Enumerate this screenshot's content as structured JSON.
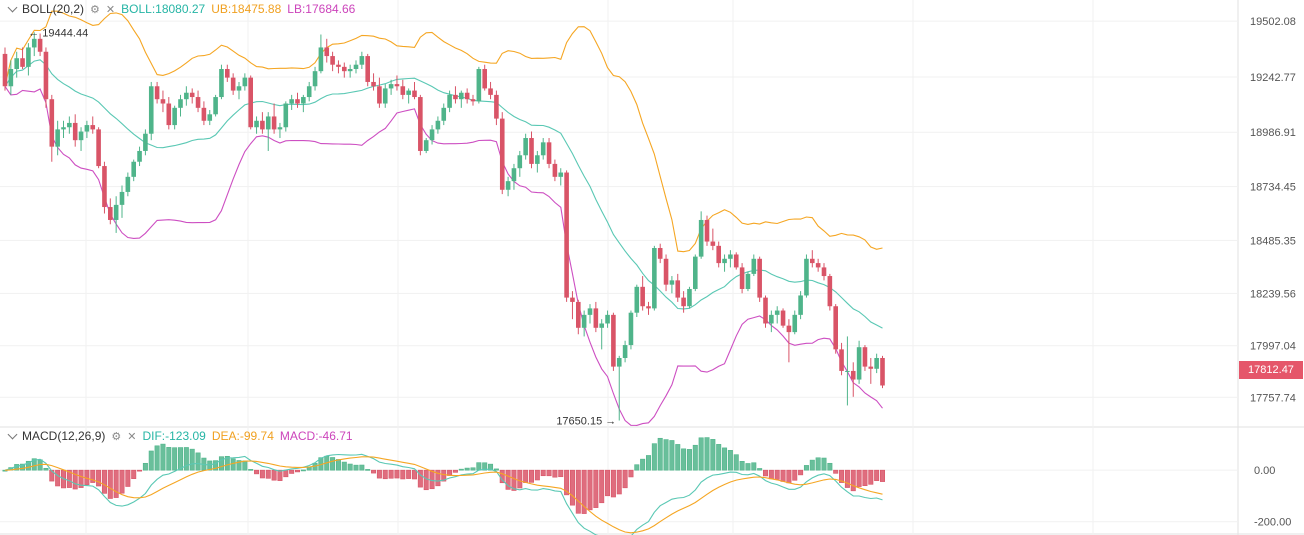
{
  "header_main": {
    "indicator": "BOLL(20,2)",
    "boll": "BOLL:18080.27",
    "ub": "UB:18475.88",
    "lb": "LB:17684.66"
  },
  "header_macd": {
    "indicator": "MACD(12,26,9)",
    "dif": "DIF:-123.09",
    "dea": "DEA:-99.74",
    "macd": "MACD:-46.71"
  },
  "price_axis_ticks": [
    "19502.08",
    "19242.77",
    "18986.91",
    "18734.45",
    "18485.35",
    "18239.56",
    "17997.04",
    "17757.74"
  ],
  "macd_axis_ticks": [
    "0.00",
    "-200.00"
  ],
  "current_price_tag": "17812.47",
  "annotations": {
    "high": "19444.44",
    "low": "17650.15"
  },
  "colors": {
    "up": "#4fb48a",
    "down": "#d95467",
    "mid": "#5ac8b4",
    "upper": "#f5a623",
    "lower": "#cd4fc2",
    "dif": "#5ac8b4",
    "dea": "#f5a623",
    "boll_text": "#26b5a5",
    "ub_text": "#f0a020",
    "lb_text": "#cc44bb"
  },
  "icons": [
    "chevron-down-icon",
    "settings-icon",
    "close-icon"
  ],
  "chart_data": {
    "type": "candlestick",
    "price_range": [
      17620,
      19600
    ],
    "macd_range": [
      -240,
      90
    ],
    "candles": [
      [
        19350,
        19380,
        19180,
        19200
      ],
      [
        19200,
        19320,
        19160,
        19280
      ],
      [
        19280,
        19360,
        19240,
        19330
      ],
      [
        19330,
        19380,
        19280,
        19290
      ],
      [
        19290,
        19400,
        19250,
        19380
      ],
      [
        19380,
        19450,
        19340,
        19420
      ],
      [
        19420,
        19444.44,
        19340,
        19360
      ],
      [
        19360,
        19380,
        19100,
        19140
      ],
      [
        19140,
        19160,
        18850,
        18920
      ],
      [
        18920,
        19040,
        18880,
        19000
      ],
      [
        19000,
        19040,
        18960,
        19010
      ],
      [
        19010,
        19060,
        18980,
        19030
      ],
      [
        19030,
        19070,
        18920,
        18950
      ],
      [
        18950,
        19010,
        18900,
        18990
      ],
      [
        18990,
        19040,
        18960,
        19020
      ],
      [
        19020,
        19060,
        18980,
        19000
      ],
      [
        19000,
        19010,
        18820,
        18830
      ],
      [
        18830,
        18850,
        18610,
        18640
      ],
      [
        18640,
        18680,
        18560,
        18580
      ],
      [
        18580,
        18690,
        18520,
        18650
      ],
      [
        18650,
        18740,
        18590,
        18710
      ],
      [
        18710,
        18800,
        18690,
        18780
      ],
      [
        18780,
        18860,
        18760,
        18850
      ],
      [
        18850,
        18920,
        18830,
        18900
      ],
      [
        18900,
        19000,
        18880,
        18980
      ],
      [
        18980,
        19220,
        18950,
        19200
      ],
      [
        19200,
        19220,
        19120,
        19140
      ],
      [
        19140,
        19180,
        19080,
        19120
      ],
      [
        19120,
        19150,
        19000,
        19020
      ],
      [
        19020,
        19110,
        19000,
        19100
      ],
      [
        19100,
        19160,
        19060,
        19140
      ],
      [
        19140,
        19200,
        19110,
        19170
      ],
      [
        19170,
        19190,
        19120,
        19150
      ],
      [
        19150,
        19180,
        19080,
        19100
      ],
      [
        19100,
        19130,
        19020,
        19040
      ],
      [
        19040,
        19090,
        19020,
        19070
      ],
      [
        19070,
        19160,
        19060,
        19150
      ],
      [
        19150,
        19300,
        19140,
        19280
      ],
      [
        19280,
        19300,
        19220,
        19240
      ],
      [
        19240,
        19260,
        19160,
        19180
      ],
      [
        19180,
        19220,
        19140,
        19200
      ],
      [
        19200,
        19260,
        19180,
        19240
      ],
      [
        19240,
        19250,
        19000,
        19010
      ],
      [
        19010,
        19060,
        18980,
        19040
      ],
      [
        19040,
        19080,
        18980,
        19000
      ],
      [
        19000,
        19080,
        18900,
        19060
      ],
      [
        19060,
        19120,
        18980,
        19000
      ],
      [
        19000,
        19030,
        18960,
        19010
      ],
      [
        19010,
        19130,
        18990,
        19120
      ],
      [
        19120,
        19160,
        19090,
        19140
      ],
      [
        19140,
        19170,
        19100,
        19120
      ],
      [
        19120,
        19160,
        19080,
        19150
      ],
      [
        19150,
        19220,
        19130,
        19200
      ],
      [
        19200,
        19290,
        19180,
        19270
      ],
      [
        19270,
        19440,
        19260,
        19380
      ],
      [
        19380,
        19420,
        19310,
        19340
      ],
      [
        19340,
        19360,
        19270,
        19300
      ],
      [
        19300,
        19320,
        19260,
        19290
      ],
      [
        19290,
        19310,
        19240,
        19270
      ],
      [
        19270,
        19300,
        19240,
        19280
      ],
      [
        19280,
        19320,
        19260,
        19300
      ],
      [
        19300,
        19360,
        19280,
        19340
      ],
      [
        19340,
        19350,
        19200,
        19220
      ],
      [
        19220,
        19260,
        19180,
        19200
      ],
      [
        19200,
        19240,
        19100,
        19120
      ],
      [
        19120,
        19210,
        19100,
        19190
      ],
      [
        19190,
        19230,
        19160,
        19210
      ],
      [
        19210,
        19250,
        19180,
        19200
      ],
      [
        19200,
        19230,
        19140,
        19160
      ],
      [
        19160,
        19190,
        19120,
        19180
      ],
      [
        19180,
        19220,
        19140,
        19150
      ],
      [
        19150,
        19160,
        18880,
        18900
      ],
      [
        18900,
        18960,
        18890,
        18950
      ],
      [
        18950,
        19020,
        18930,
        19000
      ],
      [
        19000,
        19060,
        18980,
        19040
      ],
      [
        19040,
        19120,
        19020,
        19100
      ],
      [
        19100,
        19180,
        19080,
        19160
      ],
      [
        19160,
        19200,
        19120,
        19140
      ],
      [
        19140,
        19180,
        19100,
        19170
      ],
      [
        19170,
        19190,
        19120,
        19140
      ],
      [
        19140,
        19160,
        19110,
        19130
      ],
      [
        19130,
        19290,
        19120,
        19280
      ],
      [
        19280,
        19300,
        19180,
        19190
      ],
      [
        19190,
        19220,
        19140,
        19160
      ],
      [
        19160,
        19180,
        19020,
        19050
      ],
      [
        19050,
        19080,
        18700,
        18720
      ],
      [
        18720,
        18780,
        18690,
        18760
      ],
      [
        18760,
        18840,
        18720,
        18820
      ],
      [
        18820,
        18900,
        18780,
        18880
      ],
      [
        18880,
        18980,
        18860,
        18960
      ],
      [
        18960,
        18990,
        18820,
        18840
      ],
      [
        18840,
        18900,
        18800,
        18880
      ],
      [
        18880,
        18960,
        18860,
        18940
      ],
      [
        18940,
        18960,
        18820,
        18840
      ],
      [
        18840,
        18860,
        18760,
        18780
      ],
      [
        18780,
        18820,
        18740,
        18800
      ],
      [
        18800,
        18810,
        18200,
        18220
      ],
      [
        18220,
        18250,
        18120,
        18200
      ],
      [
        18200,
        18210,
        18050,
        18080
      ],
      [
        18080,
        18160,
        18040,
        18140
      ],
      [
        18140,
        18190,
        18100,
        18170
      ],
      [
        18170,
        18200,
        18060,
        18080
      ],
      [
        18080,
        18120,
        17980,
        18100
      ],
      [
        18100,
        18160,
        18080,
        18140
      ],
      [
        18140,
        18150,
        17880,
        17900
      ],
      [
        17900,
        17950,
        17650.15,
        17940
      ],
      [
        17940,
        18020,
        17920,
        18000
      ],
      [
        18000,
        18160,
        17980,
        18150
      ],
      [
        18150,
        18280,
        18130,
        18270
      ],
      [
        18270,
        18320,
        18160,
        18180
      ],
      [
        18180,
        18200,
        18140,
        18170
      ],
      [
        18170,
        18460,
        18160,
        18450
      ],
      [
        18450,
        18470,
        18380,
        18400
      ],
      [
        18400,
        18420,
        18250,
        18280
      ],
      [
        18280,
        18320,
        18240,
        18300
      ],
      [
        18300,
        18330,
        18200,
        18220
      ],
      [
        18220,
        18250,
        18150,
        18180
      ],
      [
        18180,
        18270,
        18170,
        18260
      ],
      [
        18260,
        18420,
        18250,
        18410
      ],
      [
        18410,
        18620,
        18400,
        18580
      ],
      [
        18580,
        18600,
        18460,
        18480
      ],
      [
        18480,
        18540,
        18440,
        18460
      ],
      [
        18460,
        18480,
        18360,
        18380
      ],
      [
        18380,
        18420,
        18340,
        18400
      ],
      [
        18400,
        18440,
        18360,
        18420
      ],
      [
        18420,
        18430,
        18350,
        18360
      ],
      [
        18360,
        18380,
        18240,
        18260
      ],
      [
        18260,
        18340,
        18250,
        18330
      ],
      [
        18330,
        18420,
        18320,
        18400
      ],
      [
        18400,
        18410,
        18200,
        18220
      ],
      [
        18220,
        18230,
        18080,
        18100
      ],
      [
        18100,
        18160,
        18060,
        18140
      ],
      [
        18140,
        18180,
        18100,
        18160
      ],
      [
        18160,
        18170,
        18080,
        18090
      ],
      [
        18090,
        18120,
        17920,
        18060
      ],
      [
        18060,
        18160,
        18050,
        18140
      ],
      [
        18140,
        18250,
        18120,
        18230
      ],
      [
        18230,
        18420,
        18220,
        18400
      ],
      [
        18400,
        18440,
        18360,
        18380
      ],
      [
        18380,
        18400,
        18340,
        18360
      ],
      [
        18360,
        18380,
        18300,
        18320
      ],
      [
        18320,
        18330,
        18160,
        18180
      ],
      [
        18180,
        18190,
        17960,
        17980
      ],
      [
        17980,
        18010,
        17860,
        17880
      ],
      [
        17880,
        18040,
        17720,
        17880
      ],
      [
        17880,
        17920,
        17760,
        17840
      ],
      [
        17840,
        18020,
        17820,
        17990
      ],
      [
        17990,
        18000,
        17880,
        17900
      ],
      [
        17900,
        17940,
        17820,
        17890
      ],
      [
        17890,
        17960,
        17870,
        17940
      ],
      [
        17940,
        17950,
        17800,
        17812.47
      ]
    ]
  }
}
